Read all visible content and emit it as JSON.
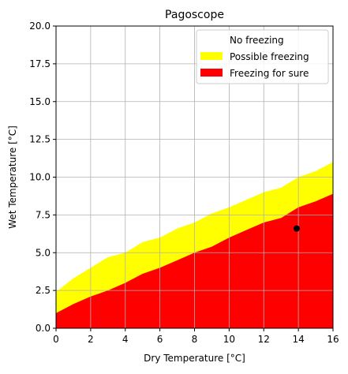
{
  "chart_data": {
    "type": "area",
    "title": "Pagoscope",
    "xlabel": "Dry Temperature [°C]",
    "ylabel": "Wet Temperature [°C]",
    "xlim": [
      0,
      16
    ],
    "ylim": [
      0,
      20
    ],
    "x_ticks": [
      0,
      2,
      4,
      6,
      8,
      10,
      12,
      14,
      16
    ],
    "y_ticks": [
      0.0,
      2.5,
      5.0,
      7.5,
      10.0,
      12.5,
      15.0,
      17.5,
      20.0
    ],
    "x_tick_labels": [
      "0",
      "2",
      "4",
      "6",
      "8",
      "10",
      "12",
      "14",
      "16"
    ],
    "y_tick_labels": [
      "0.0",
      "2.5",
      "5.0",
      "7.5",
      "10.0",
      "12.5",
      "15.0",
      "17.5",
      "20.0"
    ],
    "grid": true,
    "legend_position": "top-right",
    "x": [
      0,
      1,
      2,
      3,
      4,
      5,
      6,
      7,
      8,
      9,
      10,
      11,
      12,
      13,
      14,
      15,
      16
    ],
    "series": [
      {
        "name": "No freezing",
        "color": "#ffffff",
        "region": "above the possible-freezing boundary up to 20"
      },
      {
        "name": "Possible freezing",
        "color": "#ffff00",
        "upper": [
          2.4,
          3.3,
          4.0,
          4.7,
          5.0,
          5.7,
          6.0,
          6.6,
          7.0,
          7.6,
          8.0,
          8.5,
          9.0,
          9.3,
          10.0,
          10.4,
          11.0
        ]
      },
      {
        "name": "Freezing for sure",
        "color": "#ff0000",
        "upper": [
          1.0,
          1.6,
          2.1,
          2.5,
          3.0,
          3.6,
          4.0,
          4.5,
          5.0,
          5.4,
          6.0,
          6.5,
          7.0,
          7.3,
          8.0,
          8.4,
          8.9
        ]
      }
    ],
    "point": {
      "x": 13.9,
      "y": 6.6,
      "color": "#000000"
    }
  }
}
